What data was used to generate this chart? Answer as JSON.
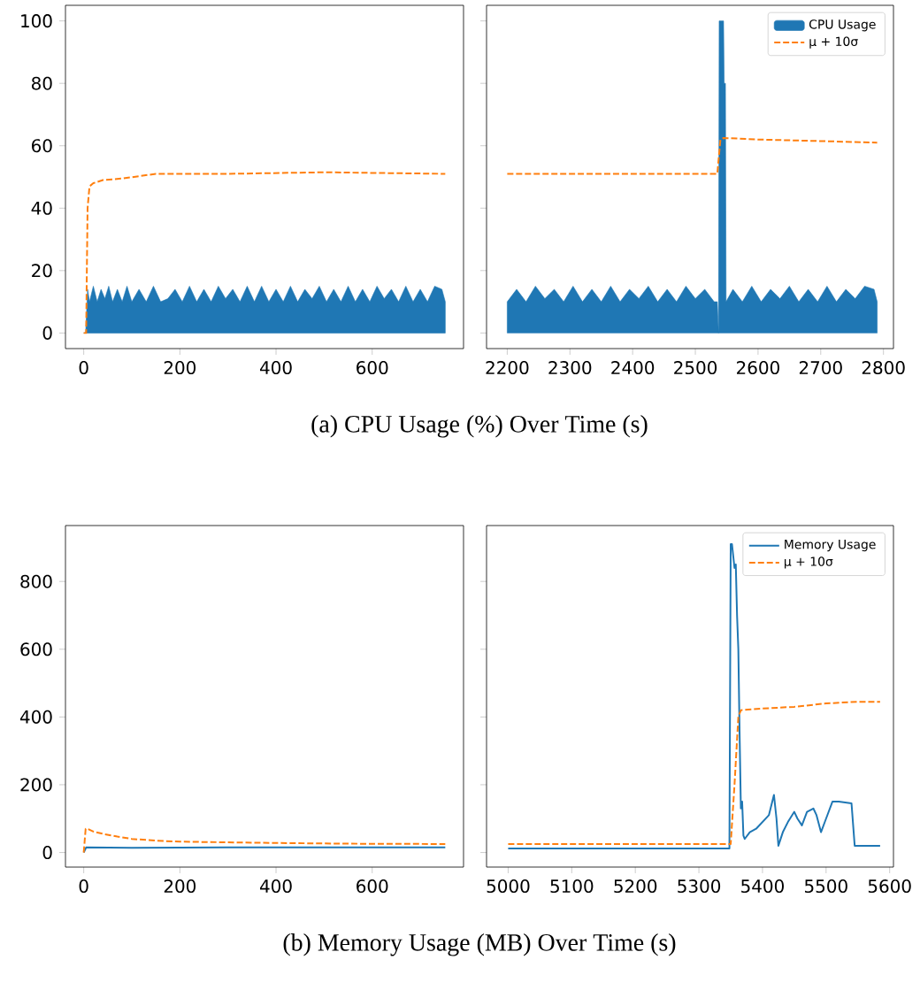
{
  "chart_data": [
    {
      "type": "line",
      "title": "(a) CPU Usage (%) Over Time (s)",
      "xlim": [
        -38,
        790
      ],
      "ylim": [
        -5,
        105
      ],
      "xticks": [
        0,
        200,
        400,
        600
      ],
      "yticks": [
        0,
        20,
        40,
        60,
        80,
        100
      ],
      "series": [
        {
          "type": "area",
          "color": "#1f77b4",
          "x": [
            0,
            4,
            8,
            12,
            20,
            28,
            36,
            44,
            52,
            60,
            70,
            80,
            90,
            100,
            115,
            130,
            145,
            160,
            175,
            190,
            205,
            220,
            235,
            250,
            265,
            280,
            295,
            310,
            325,
            340,
            355,
            370,
            385,
            400,
            415,
            430,
            445,
            460,
            475,
            490,
            505,
            520,
            535,
            550,
            565,
            580,
            595,
            610,
            625,
            640,
            655,
            670,
            685,
            700,
            715,
            730,
            745,
            752
          ],
          "values": [
            0,
            0,
            14,
            10,
            15,
            10,
            14,
            11,
            15,
            10,
            14,
            10,
            15,
            10,
            14,
            10,
            15,
            10,
            11,
            14,
            10,
            15,
            10,
            14,
            10,
            15,
            11,
            14,
            10,
            15,
            10,
            15,
            10,
            14,
            10,
            15,
            10,
            14,
            11,
            15,
            10,
            14,
            10,
            15,
            10,
            14,
            10,
            15,
            11,
            14,
            10,
            15,
            10,
            14,
            10,
            15,
            14,
            10
          ]
        },
        {
          "line_style": "dashed",
          "color": "#ff7f0e",
          "x": [
            0,
            5,
            8,
            12,
            20,
            40,
            80,
            150,
            300,
            500,
            752
          ],
          "values": [
            0,
            0,
            40,
            47,
            48,
            49,
            49.5,
            51,
            51,
            51.5,
            51
          ]
        }
      ]
    },
    {
      "type": "line",
      "legend": "top right",
      "tick_labels": "x",
      "xlim": [
        2167,
        2816
      ],
      "ylim": [
        -5,
        105
      ],
      "xticks": [
        2200,
        2300,
        2400,
        2500,
        2600,
        2700,
        2800
      ],
      "yticks": [
        0,
        20,
        40,
        60,
        80,
        100
      ],
      "series": [
        {
          "type": "area",
          "name": "CPU Usage",
          "color": "#1f77b4",
          "x": [
            2200,
            2215,
            2230,
            2245,
            2260,
            2275,
            2290,
            2305,
            2320,
            2335,
            2350,
            2365,
            2380,
            2395,
            2410,
            2425,
            2440,
            2455,
            2470,
            2485,
            2500,
            2515,
            2530,
            2535,
            2537,
            2538,
            2545,
            2546,
            2548,
            2549,
            2560,
            2575,
            2590,
            2605,
            2620,
            2635,
            2650,
            2665,
            2680,
            2695,
            2710,
            2725,
            2740,
            2755,
            2770,
            2785,
            2790
          ],
          "values": [
            10,
            14,
            10,
            15,
            11,
            14,
            10,
            15,
            10,
            14,
            10,
            15,
            10,
            14,
            11,
            15,
            10,
            14,
            10,
            15,
            11,
            14,
            10,
            10,
            0,
            100,
            100,
            80,
            80,
            10,
            14,
            10,
            15,
            10,
            14,
            11,
            15,
            10,
            14,
            10,
            15,
            10,
            14,
            11,
            15,
            14,
            10
          ]
        },
        {
          "name": "μ + 10σ",
          "line_style": "dashed",
          "color": "#ff7f0e",
          "x": [
            2200,
            2535,
            2540,
            2545,
            2600,
            2700,
            2790
          ],
          "values": [
            51,
            51,
            62,
            62.5,
            62,
            61.5,
            61
          ]
        }
      ]
    },
    {
      "type": "line",
      "title": "(b) Memory Usage (MB) Over Time (s)",
      "xlim": [
        -38,
        790
      ],
      "ylim": [
        -43,
        965
      ],
      "xticks": [
        0,
        200,
        400,
        600
      ],
      "yticks": [
        0,
        200,
        400,
        600,
        800
      ],
      "series": [
        {
          "line_style": "solid",
          "color": "#1f77b4",
          "x": [
            0,
            5,
            100,
            300,
            500,
            752
          ],
          "values": [
            0,
            15,
            14,
            15,
            15,
            15
          ]
        },
        {
          "line_style": "dashed",
          "color": "#ff7f0e",
          "x": [
            0,
            4,
            8,
            20,
            40,
            70,
            100,
            150,
            200,
            300,
            400,
            550,
            752
          ],
          "values": [
            0,
            70,
            70,
            62,
            55,
            47,
            40,
            35,
            32,
            30,
            28,
            26,
            25
          ]
        }
      ]
    },
    {
      "type": "line",
      "legend": "top right",
      "tick_labels": "x",
      "xlim": [
        4966,
        5606
      ],
      "ylim": [
        -43,
        965
      ],
      "xticks": [
        5000,
        5100,
        5200,
        5300,
        5400,
        5500,
        5600
      ],
      "yticks": [
        0,
        200,
        400,
        600,
        800
      ],
      "series": [
        {
          "name": "Memory Usage",
          "line_style": "solid",
          "color": "#1f77b4",
          "x": [
            5000,
            5100,
            5200,
            5300,
            5348,
            5350,
            5352,
            5356,
            5358,
            5360,
            5362,
            5364,
            5366,
            5368,
            5370,
            5372,
            5380,
            5390,
            5400,
            5410,
            5418,
            5422,
            5425,
            5432,
            5440,
            5450,
            5455,
            5462,
            5470,
            5480,
            5485,
            5492,
            5500,
            5510,
            5520,
            5540,
            5545,
            5585
          ],
          "values": [
            12,
            12,
            12,
            12,
            12,
            910,
            910,
            840,
            850,
            700,
            600,
            350,
            130,
            150,
            50,
            40,
            60,
            70,
            90,
            110,
            170,
            100,
            20,
            60,
            90,
            120,
            100,
            80,
            120,
            130,
            110,
            60,
            100,
            150,
            150,
            145,
            20,
            20
          ]
        },
        {
          "name": "μ + 10σ",
          "line_style": "dashed",
          "color": "#ff7f0e",
          "x": [
            5000,
            5350,
            5356,
            5362,
            5366,
            5400,
            5450,
            5500,
            5550,
            5585
          ],
          "values": [
            25,
            25,
            200,
            400,
            420,
            425,
            430,
            440,
            445,
            445
          ]
        }
      ]
    }
  ]
}
